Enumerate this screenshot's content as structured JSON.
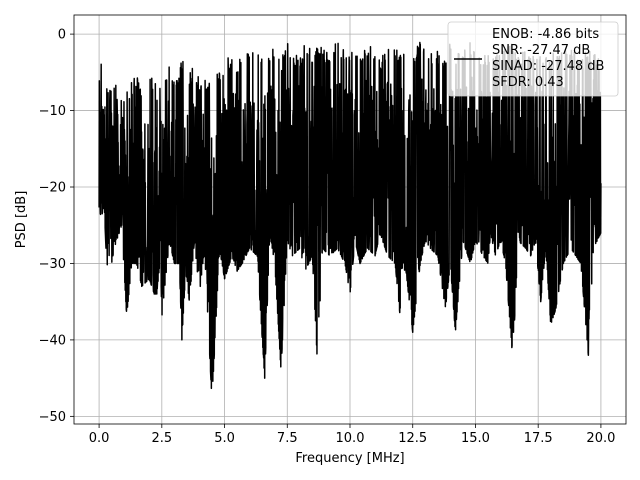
{
  "chart_data": {
    "type": "line",
    "title": "",
    "xlabel": "Frequency [MHz]",
    "ylabel": "PSD [dB]",
    "xlim": [
      -1.0,
      21.0
    ],
    "ylim": [
      -51.0,
      2.5
    ],
    "xticks": [
      0.0,
      2.5,
      5.0,
      7.5,
      10.0,
      12.5,
      15.0,
      17.5,
      20.0
    ],
    "xtick_labels": [
      "0.0",
      "2.5",
      "5.0",
      "7.5",
      "10.0",
      "12.5",
      "15.0",
      "17.5",
      "20.0"
    ],
    "yticks": [
      0,
      -10,
      -20,
      -30,
      -40,
      -50
    ],
    "ytick_labels": [
      "0",
      "−10",
      "−20",
      "−30",
      "−40",
      "−50"
    ],
    "grid": true,
    "legend_position": "top-right",
    "series": [
      {
        "name": "",
        "color": "#000000",
        "x": [
          0.0,
          0.1,
          0.2,
          0.3,
          0.45,
          0.6,
          0.9,
          1.1,
          1.3,
          1.5,
          1.7,
          2.0,
          2.2,
          2.3,
          2.45,
          2.5,
          2.8,
          3.0,
          3.2,
          3.3,
          3.45,
          3.6,
          3.8,
          4.0,
          4.2,
          4.35,
          4.5,
          4.8,
          5.0,
          5.3,
          5.5,
          5.7,
          6.0,
          6.3,
          6.6,
          6.8,
          7.0,
          7.25,
          7.5,
          7.7,
          8.0,
          8.2,
          8.5,
          8.7,
          8.9,
          9.2,
          9.5,
          9.8,
          10.0,
          10.2,
          10.4,
          10.7,
          11.0,
          11.2,
          11.5,
          11.8,
          12.0,
          12.2,
          12.5,
          12.8,
          13.0,
          13.2,
          13.5,
          13.8,
          14.0,
          14.2,
          14.5,
          14.8,
          15.0,
          15.3,
          15.5,
          15.6,
          15.8,
          16.0,
          16.2,
          16.45,
          16.55,
          16.7,
          17.0,
          17.2,
          17.4,
          17.6,
          17.8,
          18.0,
          18.2,
          18.5,
          18.8,
          19.0,
          19.2,
          19.5,
          19.7,
          20.0
        ],
        "y_max": [
          -3,
          -3,
          -5,
          -6,
          -7,
          -6,
          -8,
          -7,
          -6,
          -5,
          -8,
          -5,
          -6,
          -4,
          -7,
          -6,
          -4,
          -6,
          -5,
          -3,
          -5,
          -5,
          -4,
          -6,
          -5,
          -7,
          -4,
          -5,
          -3,
          -3,
          -4,
          -2,
          -2,
          -3,
          -1,
          -2,
          -2,
          -3,
          -1,
          -2,
          -3,
          -1,
          -2,
          -1,
          -2,
          -2,
          -1,
          -2,
          -2,
          -1,
          -2,
          -1,
          -2,
          -3,
          -1,
          -2,
          -2,
          -1,
          -2,
          -1,
          -2,
          -2,
          -2,
          -3,
          -1,
          -2,
          -2,
          -1,
          -2,
          -3,
          -2,
          -2,
          -2,
          -2,
          -2,
          -1,
          -2,
          -2,
          -2,
          -3,
          -2,
          -2,
          -2,
          -3,
          -2,
          -2,
          -2,
          -2,
          -3,
          -2,
          -2,
          -3
        ],
        "y_min": [
          -23,
          -24,
          -22,
          -30,
          -31,
          -28,
          -25,
          -37,
          -30,
          -30,
          -33,
          -32,
          -34,
          -34,
          -29,
          -37,
          -27,
          -30,
          -30,
          -40,
          -31,
          -35,
          -27,
          -34,
          -28,
          -38,
          -48,
          -28,
          -32,
          -29,
          -31,
          -30,
          -28,
          -29,
          -45,
          -26,
          -30,
          -44,
          -27,
          -29,
          -28,
          -31,
          -29,
          -43,
          -28,
          -29,
          -28,
          -30,
          -34,
          -27,
          -30,
          -28,
          -29,
          -26,
          -29,
          -30,
          -37,
          -30,
          -39,
          -30,
          -27,
          -28,
          -29,
          -36,
          -30,
          -39,
          -27,
          -30,
          -27,
          -29,
          -30,
          -26,
          -29,
          -27,
          -30,
          -41,
          -38,
          -27,
          -28,
          -29,
          -27,
          -35,
          -28,
          -38,
          -36,
          -30,
          -28,
          -29,
          -30,
          -42,
          -28,
          -26
        ]
      }
    ],
    "legend": {
      "lines": [
        "ENOB: -4.86 bits",
        "SNR: -27.47 dB",
        "SINAD: -27.48 dB",
        "SFDR: 0.43"
      ]
    }
  }
}
